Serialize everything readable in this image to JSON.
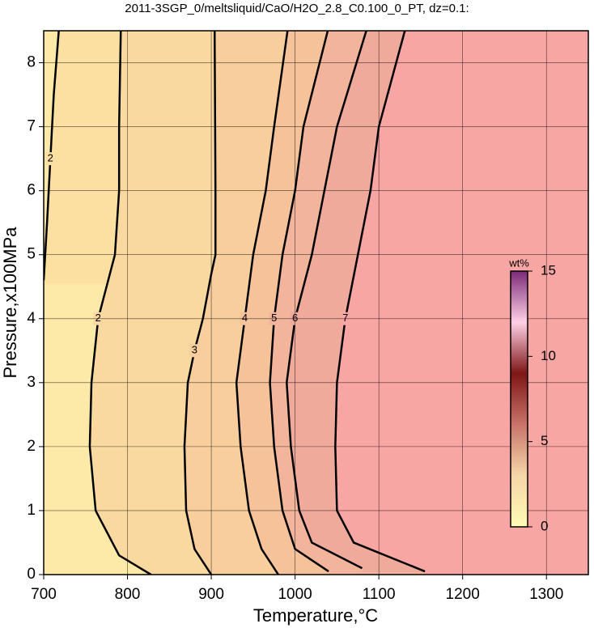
{
  "chart_data": {
    "type": "contour",
    "title": "2011-3SGP_0/meltsliquid/CaO/H2O_2.8_C0.100_0_PT, dz=0.1:",
    "x_label": "Temperature,°C",
    "y_label": "Pressure,x100MPa",
    "xlim": [
      700,
      1350
    ],
    "ylim": [
      0,
      8.5
    ],
    "xticks": [
      700,
      800,
      900,
      1000,
      1100,
      1200,
      1300
    ],
    "yticks": [
      0,
      1,
      2,
      3,
      4,
      5,
      6,
      7,
      8
    ],
    "grid": true,
    "background": "#fde9a8",
    "contours": [
      {
        "level": 2,
        "color": "#fbe0a2",
        "x": [
          700,
          704,
          708,
          712,
          718
        ],
        "y": [
          4.6,
          5.5,
          6.5,
          7.5,
          8.5
        ]
      },
      {
        "level": 2,
        "color": "#fad9a0",
        "x": [
          828,
          790,
          762,
          755,
          757,
          765,
          785,
          790,
          790,
          792
        ],
        "y": [
          0,
          0.3,
          1,
          2,
          3,
          4,
          5,
          6,
          7,
          8.5
        ]
      },
      {
        "level": 3,
        "color": "#f8cf9c",
        "x": [
          900,
          880,
          870,
          868,
          872,
          880,
          890,
          900,
          905,
          905,
          904
        ],
        "y": [
          0,
          0.4,
          1,
          2,
          3,
          3.5,
          4,
          4.7,
          5,
          6,
          8.5
        ]
      },
      {
        "level": 4,
        "color": "#f5c29a",
        "x": [
          980,
          960,
          945,
          935,
          930,
          940,
          950,
          965,
          975,
          991
        ],
        "y": [
          0,
          0.4,
          1,
          2,
          3,
          4,
          5,
          6,
          7,
          8.5
        ]
      },
      {
        "level": 5,
        "color": "#f2b49a",
        "x": [
          1040,
          1000,
          985,
          975,
          970,
          975,
          985,
          1000,
          1010,
          1039
        ],
        "y": [
          0.05,
          0.4,
          1,
          2,
          3,
          4,
          5,
          6,
          7,
          8.5
        ]
      },
      {
        "level": 6,
        "color": "#f0aa9c",
        "x": [
          1080,
          1020,
          1005,
          995,
          990,
          1000,
          1020,
          1035,
          1050,
          1085
        ],
        "y": [
          0.1,
          0.5,
          1,
          2,
          3,
          4,
          5,
          6,
          7,
          8.5
        ]
      },
      {
        "level": 7,
        "color": "#f8a6a3",
        "x": [
          1155,
          1070,
          1050,
          1048,
          1050,
          1060,
          1075,
          1090,
          1100,
          1131
        ],
        "y": [
          0.05,
          0.5,
          1,
          2,
          3,
          4,
          5,
          6,
          7,
          8.5
        ]
      }
    ],
    "colorbar": {
      "label": "wt%",
      "lim": [
        0,
        15
      ],
      "ticks": [
        0,
        5,
        10,
        15
      ],
      "colormap": [
        "#fffbb5",
        "#f5d6a8",
        "#c9736a",
        "#7e1616",
        "#ffd0e6",
        "#7b2a78"
      ]
    }
  }
}
